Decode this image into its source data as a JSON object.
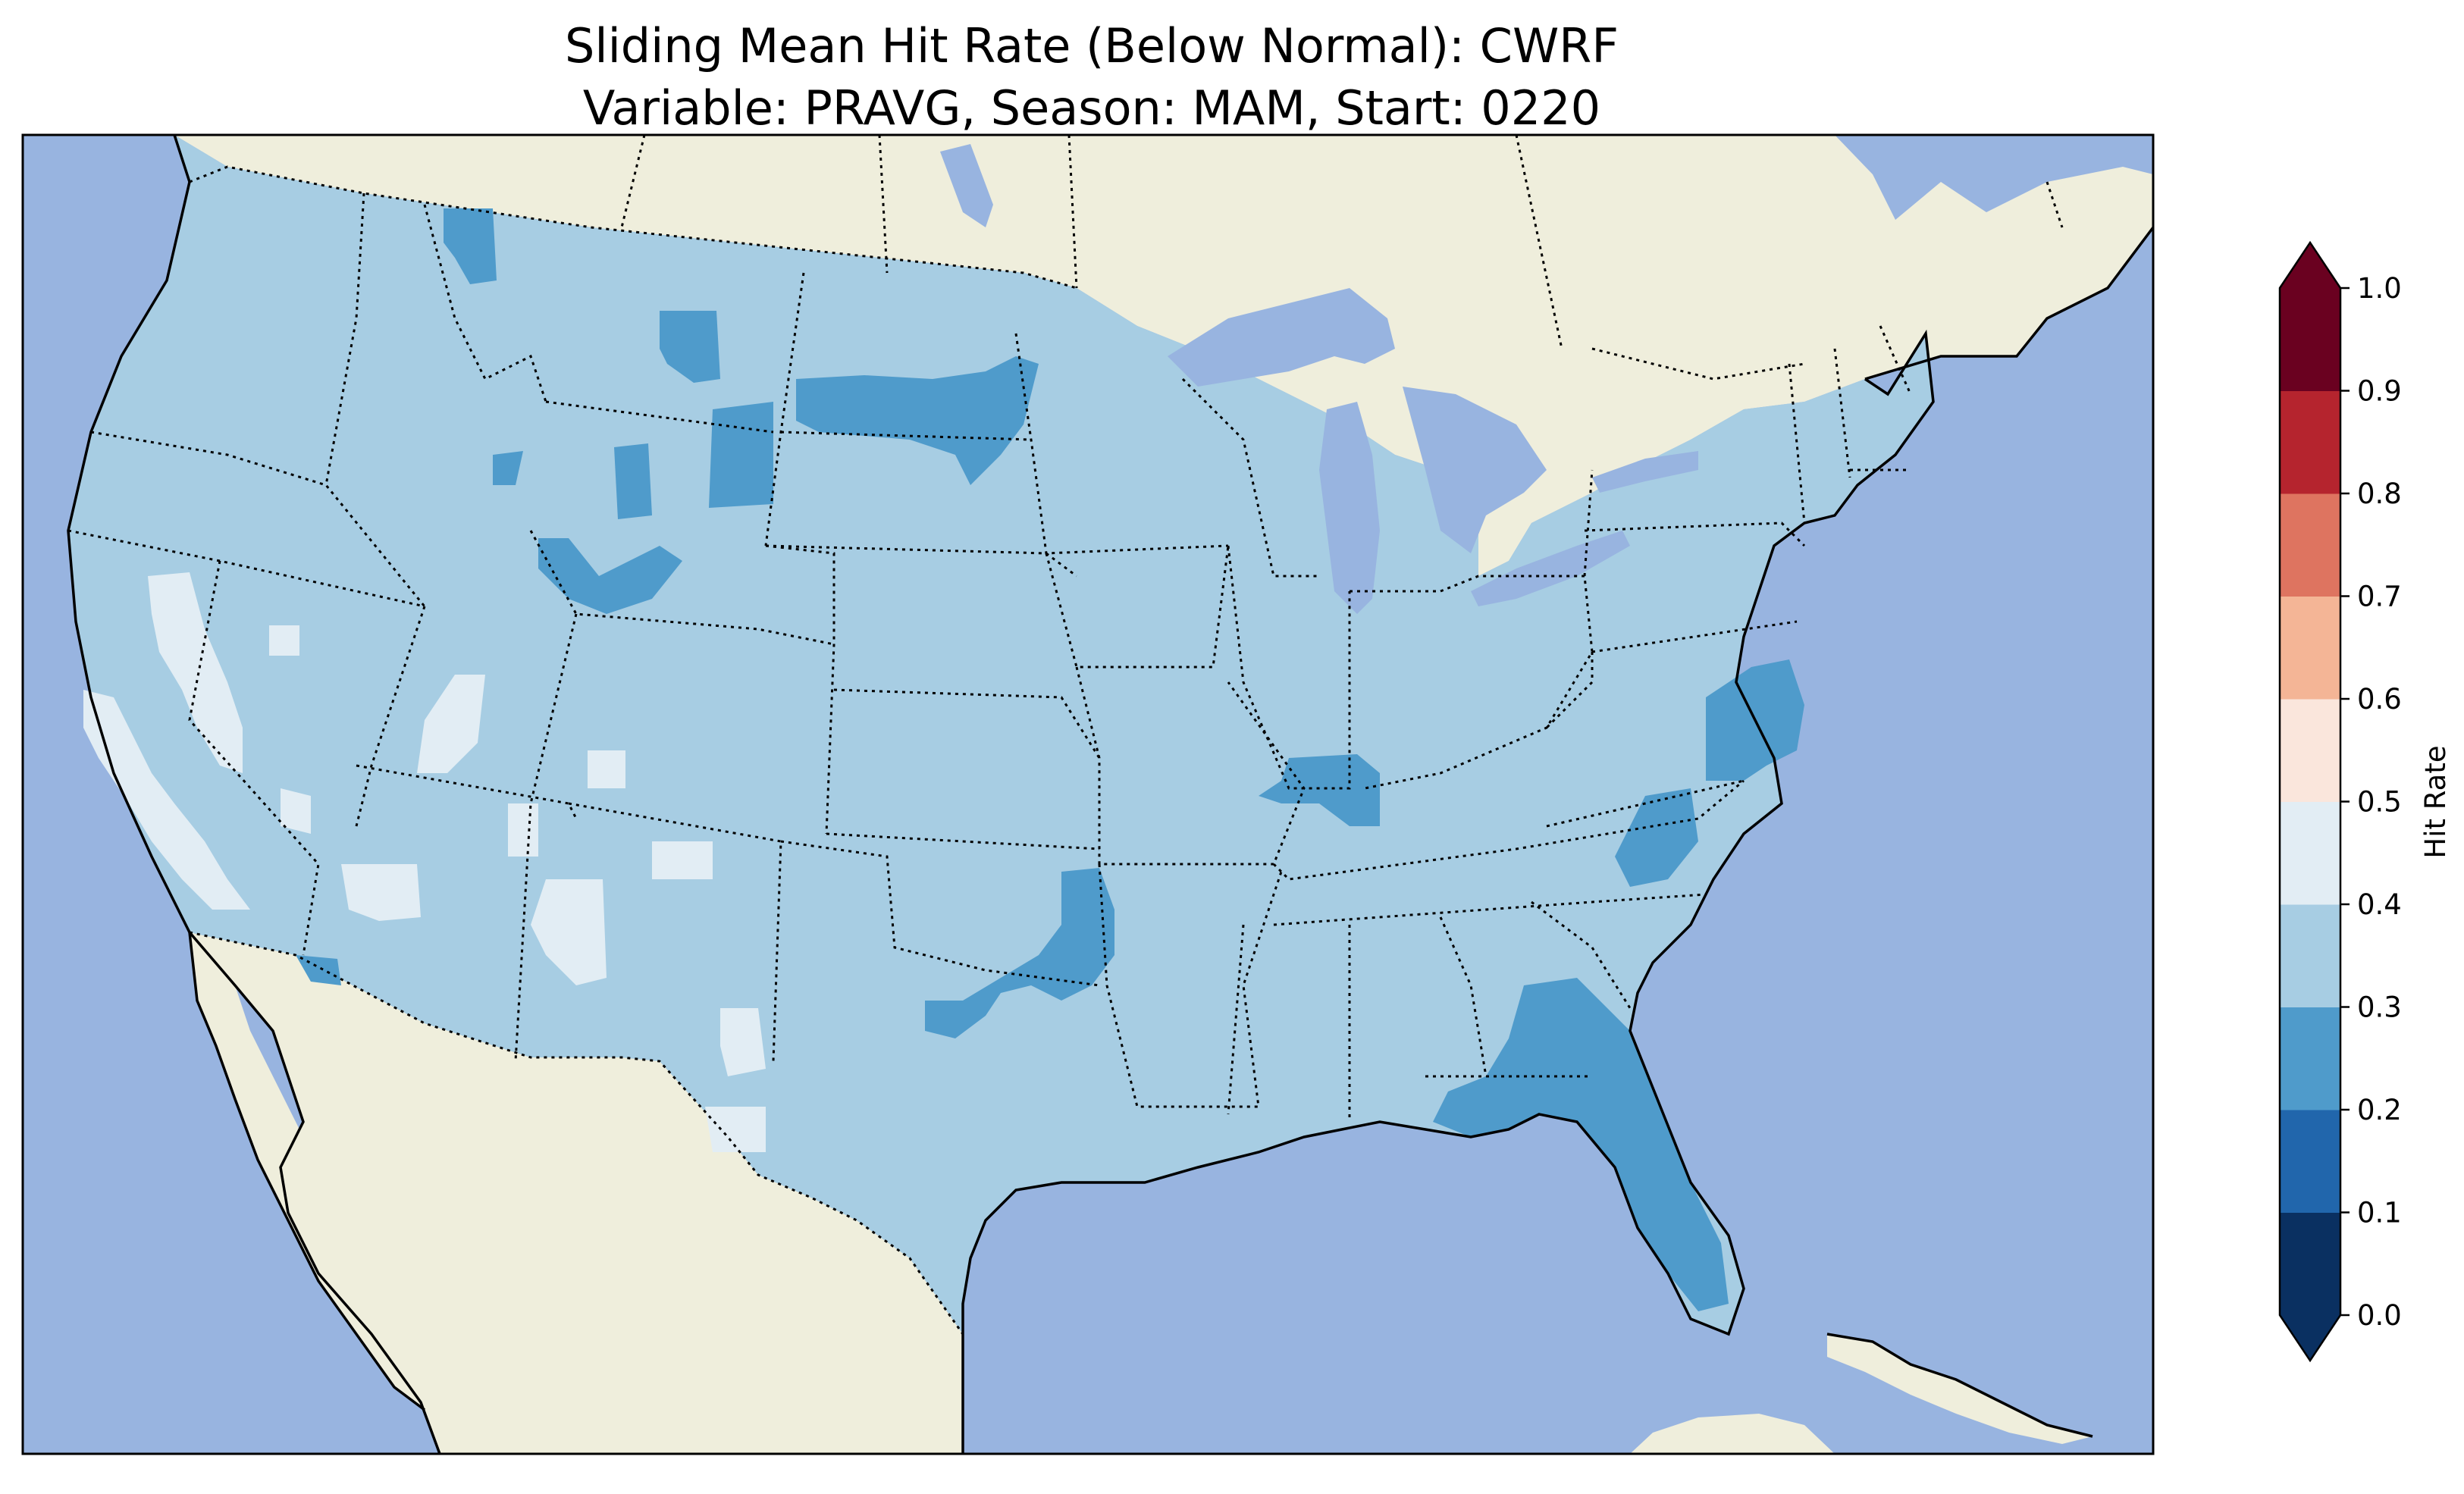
{
  "title": {
    "line1": "Sliding Mean Hit Rate (Below Normal): CWRF",
    "line2": "Variable: PRAVG, Season: MAM, Start: 0220"
  },
  "colors": {
    "ocean": "#98b4e0",
    "land": "#efeedc",
    "coastline": "#000000",
    "borders": "#000000"
  },
  "colorbar": {
    "label": "Hit Rate",
    "ticks": [
      "0.0",
      "0.1",
      "0.2",
      "0.3",
      "0.4",
      "0.5",
      "0.6",
      "0.7",
      "0.8",
      "0.9",
      "1.0"
    ],
    "colors": [
      "#0a3061",
      "#2166ac",
      "#4f9bcb",
      "#a7cde3",
      "#e2edf4",
      "#fae6dc",
      "#f4b596",
      "#de7460",
      "#b5242e",
      "#6a0120"
    ],
    "extend": "both"
  },
  "map_data": {
    "variable": "PRAVG",
    "season": "MAM",
    "start": "0220",
    "dominant_class": "0.3–0.4",
    "regions": [
      {
        "name": "Contiguous US (most areas)",
        "range": "0.3-0.4"
      },
      {
        "name": "California Central Valley / coast",
        "range": "0.4-0.5"
      },
      {
        "name": "Central Nevada / SW Utah / Arizona patches",
        "range": "0.4-0.5"
      },
      {
        "name": "West Texas patches",
        "range": "0.4-0.5"
      },
      {
        "name": "Northwest Montana",
        "range": "0.2-0.3"
      },
      {
        "name": "North Dakota / Montana band",
        "range": "0.2-0.3"
      },
      {
        "name": "Wyoming patches",
        "range": "0.2-0.3"
      },
      {
        "name": "Oklahoma / Texas panhandle border",
        "range": "0.2-0.3"
      },
      {
        "name": "Southern Illinois / Kentucky",
        "range": "0.2-0.3"
      },
      {
        "name": "Virginia / Chesapeake",
        "range": "0.2-0.3"
      },
      {
        "name": "North Carolina",
        "range": "0.2-0.3"
      },
      {
        "name": "Georgia / Florida",
        "range": "0.2-0.3"
      }
    ]
  }
}
